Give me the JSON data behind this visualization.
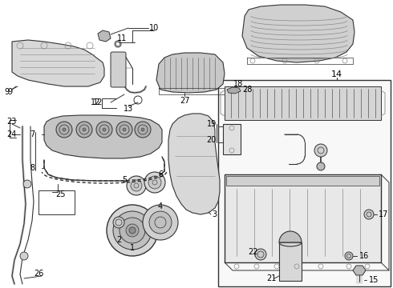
{
  "bg_color": "#ffffff",
  "line_color": "#333333",
  "fig_width": 4.9,
  "fig_height": 3.6,
  "dpi": 100
}
